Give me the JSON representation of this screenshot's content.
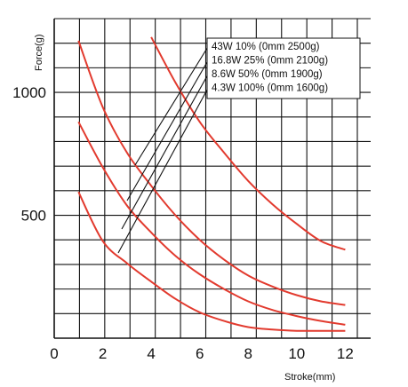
{
  "chart_data": {
    "type": "line",
    "title": "",
    "xlabel": "Stroke(mm)",
    "ylabel": "Force(g)",
    "xlim": [
      0,
      12.5
    ],
    "ylim": [
      0,
      1300
    ],
    "x_ticks": [
      0,
      2,
      4,
      6,
      8,
      10,
      12
    ],
    "y_ticks": [
      500,
      1000
    ],
    "grid": true,
    "legend_position": "top-right",
    "line_color": "#e23a2e",
    "series": [
      {
        "name": "43W 10% (0mm 2500g)",
        "x": [
          4.0,
          5.0,
          6.0,
          7.0,
          8.0,
          9.0,
          10.0,
          11.0,
          12.0
        ],
        "y": [
          1225,
          1040,
          880,
          755,
          640,
          545,
          465,
          395,
          360
        ]
      },
      {
        "name": "16.8W 25% (0mm 2100g)",
        "x": [
          1.0,
          2.0,
          3.0,
          4.0,
          5.0,
          6.0,
          7.0,
          8.0,
          9.0,
          10.0,
          11.0,
          12.0
        ],
        "y": [
          1210,
          940,
          755,
          620,
          500,
          400,
          320,
          255,
          210,
          175,
          150,
          135
        ]
      },
      {
        "name": "8.6W 50% (0mm 1900g)",
        "x": [
          1.0,
          2.0,
          3.0,
          4.0,
          5.0,
          6.0,
          7.0,
          8.0,
          9.0,
          10.0,
          11.0,
          12.0
        ],
        "y": [
          880,
          695,
          540,
          430,
          335,
          260,
          200,
          150,
          115,
          90,
          70,
          55
        ]
      },
      {
        "name": "4.3W 100% (0mm 1600g)",
        "x": [
          1.0,
          2.0,
          3.0,
          4.0,
          5.0,
          6.0,
          7.0,
          8.0,
          9.0,
          10.0,
          11.0,
          12.0
        ],
        "y": [
          595,
          395,
          305,
          230,
          160,
          105,
          70,
          45,
          35,
          30,
          30,
          30
        ]
      }
    ]
  }
}
